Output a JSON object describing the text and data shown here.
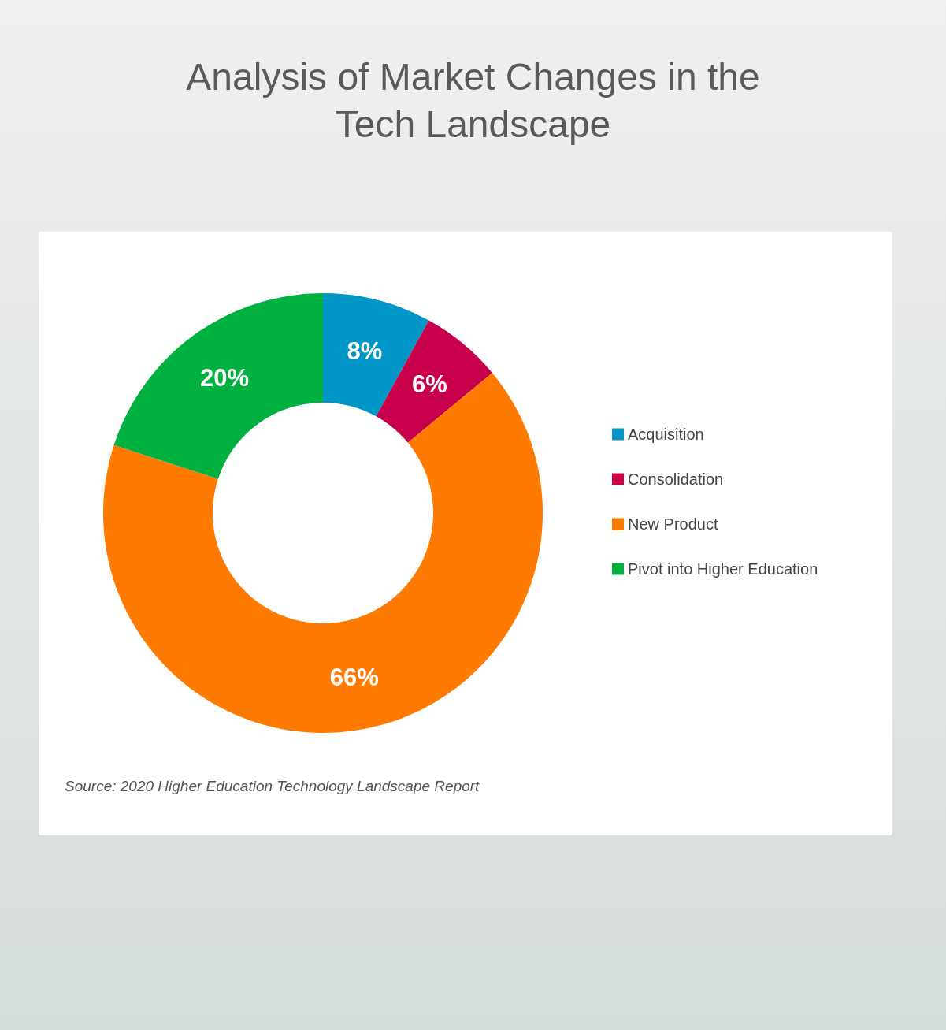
{
  "chart_data": {
    "type": "donut",
    "title": "Analysis of Market Changes in the\nTech Landscape",
    "categories": [
      "Acquisition",
      "Consolidation",
      "New Product",
      "Pivot into Higher Education"
    ],
    "values": [
      8,
      6,
      66,
      20
    ],
    "colors": [
      "#0096c8",
      "#c8004b",
      "#ff7a00",
      "#00b140"
    ],
    "value_labels": [
      "8%",
      "6%",
      "66%",
      "20%"
    ],
    "legend": "right",
    "annotations": [
      "Source: 2020 Higher Education Technology Landscape Report"
    ]
  }
}
